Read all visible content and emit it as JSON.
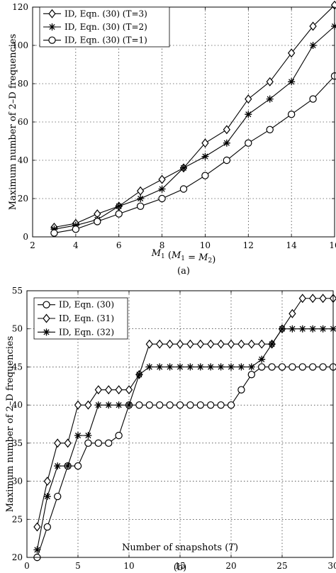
{
  "chart_data": [
    {
      "type": "line",
      "xlabel": "M_1 (M_1 = M_2)",
      "ylabel": "Maximum number of 2–D frequencies",
      "caption": "(a)",
      "xlim": [
        2,
        16
      ],
      "ylim": [
        0,
        120
      ],
      "xticks": [
        2,
        4,
        6,
        8,
        10,
        12,
        14,
        16
      ],
      "yticks": [
        0,
        20,
        40,
        60,
        80,
        100,
        120
      ],
      "grid": true,
      "legend": "top-left",
      "x": [
        3,
        4,
        5,
        6,
        7,
        8,
        9,
        10,
        11,
        12,
        13,
        14,
        15,
        16
      ],
      "series": [
        {
          "name": "ID, Eqn. (30) (T=3)",
          "marker": "diamond",
          "values": [
            5,
            7,
            12,
            16,
            24,
            30,
            36,
            49,
            56,
            72,
            81,
            96,
            110,
            121
          ]
        },
        {
          "name": "ID, Eqn. (30) (T=2)",
          "marker": "star",
          "values": [
            4,
            6,
            9,
            16,
            20,
            25,
            36,
            42,
            49,
            64,
            72,
            81,
            100,
            110
          ]
        },
        {
          "name": "ID, Eqn. (30) (T=1)",
          "marker": "circle",
          "values": [
            2,
            4,
            8,
            12,
            16,
            20,
            25,
            32,
            40,
            49,
            56,
            64,
            72,
            84
          ]
        }
      ]
    },
    {
      "type": "line",
      "xlabel": "Number of snapshots (T)",
      "ylabel": "Maximum number of 2–D frequencies",
      "caption": "(b)",
      "xlim": [
        0,
        30
      ],
      "ylim": [
        20,
        55
      ],
      "xticks": [
        0,
        5,
        10,
        15,
        20,
        25,
        30
      ],
      "yticks": [
        20,
        25,
        30,
        35,
        40,
        45,
        50,
        55
      ],
      "grid": true,
      "legend": "top-left",
      "x": [
        1,
        2,
        3,
        4,
        5,
        6,
        7,
        8,
        9,
        10,
        11,
        12,
        13,
        14,
        15,
        16,
        17,
        18,
        19,
        20,
        21,
        22,
        23,
        24,
        25,
        26,
        27,
        28,
        29,
        30
      ],
      "series": [
        {
          "name": "ID, Eqn. (30)",
          "marker": "circle",
          "values": [
            20,
            24,
            28,
            32,
            32,
            35,
            35,
            35,
            36,
            40,
            40,
            40,
            40,
            40,
            40,
            40,
            40,
            40,
            40,
            40,
            42,
            44,
            45,
            45,
            45,
            45,
            45,
            45,
            45,
            45
          ]
        },
        {
          "name": "ID, Eqn. (31)",
          "marker": "diamond",
          "values": [
            24,
            30,
            35,
            35,
            40,
            40,
            42,
            42,
            42,
            42,
            44,
            48,
            48,
            48,
            48,
            48,
            48,
            48,
            48,
            48,
            48,
            48,
            48,
            48,
            50,
            52,
            54,
            54,
            54,
            54
          ]
        },
        {
          "name": "ID, Eqn. (32)",
          "marker": "star",
          "values": [
            21,
            28,
            32,
            32,
            36,
            36,
            40,
            40,
            40,
            40,
            44,
            45,
            45,
            45,
            45,
            45,
            45,
            45,
            45,
            45,
            45,
            45,
            46,
            48,
            50,
            50,
            50,
            50,
            50,
            50
          ]
        }
      ]
    }
  ]
}
